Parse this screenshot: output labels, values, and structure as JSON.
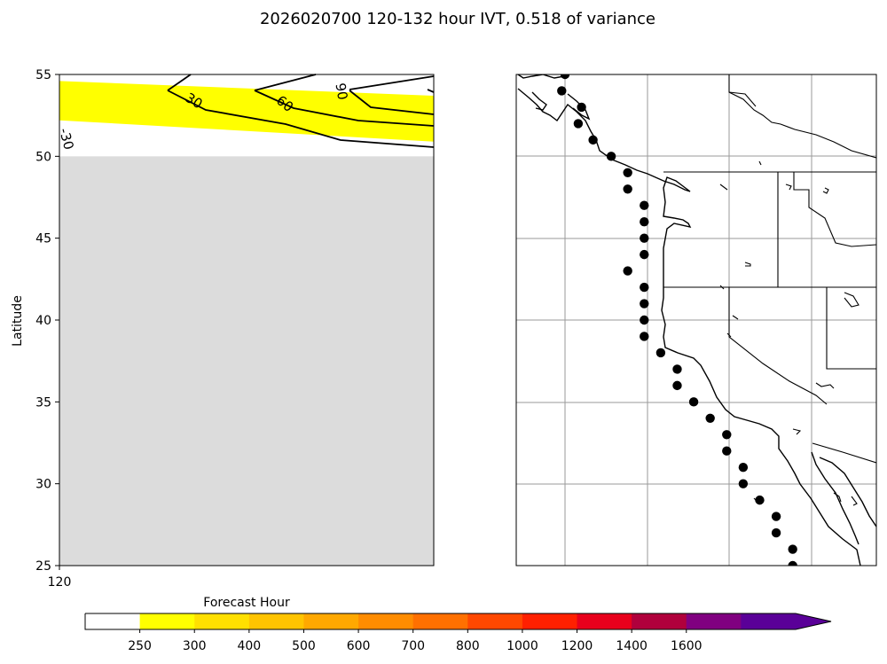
{
  "title": "2026020700 120-132 hour IVT, 0.518 of variance",
  "left_panel": {
    "ylabel": "Latitude",
    "ylim": [
      25,
      55
    ],
    "yticks": [
      "25",
      "30",
      "35",
      "40",
      "45",
      "50",
      "55"
    ],
    "xtick": "120",
    "missing_region": {
      "lat_min": 25,
      "lat_max": 50,
      "color": "#dcdcdc"
    },
    "ivt_band": {
      "color": "#ffff00",
      "lat_north_west": 54.6,
      "lat_north_east": 53.7,
      "lat_south_west": 52.2,
      "lat_south_east": 50.9
    },
    "contour_labels": [
      "-30",
      "30",
      "60",
      "90"
    ]
  },
  "right_panel": {
    "type": "map",
    "region": "US / Canada / Mexico west coast",
    "gridlines": true,
    "points_label": "coastal landfall points"
  },
  "colorbar": {
    "title": "Forecast Hour",
    "colors": [
      "#ffffff",
      "#ffff00",
      "#ffe000",
      "#ffc400",
      "#ffa800",
      "#ff8c00",
      "#ff7000",
      "#ff4800",
      "#ff2000",
      "#e8001c",
      "#b0003c",
      "#800080",
      "#5a0098"
    ],
    "tick_labels": [
      "250",
      "300",
      "400",
      "500",
      "600",
      "700",
      "800",
      "1000",
      "1200",
      "1400",
      "1600"
    ],
    "extend_arrow_color": "#5a0098"
  },
  "chart_data": {
    "type": "map",
    "title": "2026020700 120-132 hour IVT, 0.518 of variance",
    "ylabel": "Latitude",
    "ylim": [
      25,
      55
    ],
    "colorbar_label": "Forecast Hour",
    "colorbar_levels": [
      250,
      300,
      400,
      500,
      600,
      700,
      800,
      1000,
      1200,
      1400,
      1600
    ],
    "contour_levels": [
      -30,
      30,
      60,
      90
    ],
    "landfall_latitudes": [
      55,
      54,
      53,
      52,
      51,
      50,
      49,
      48,
      47,
      46,
      45,
      44,
      43,
      42,
      41,
      40,
      39,
      38,
      37,
      36,
      35,
      34,
      33,
      32,
      31,
      30,
      29,
      28,
      27,
      26,
      25
    ]
  }
}
